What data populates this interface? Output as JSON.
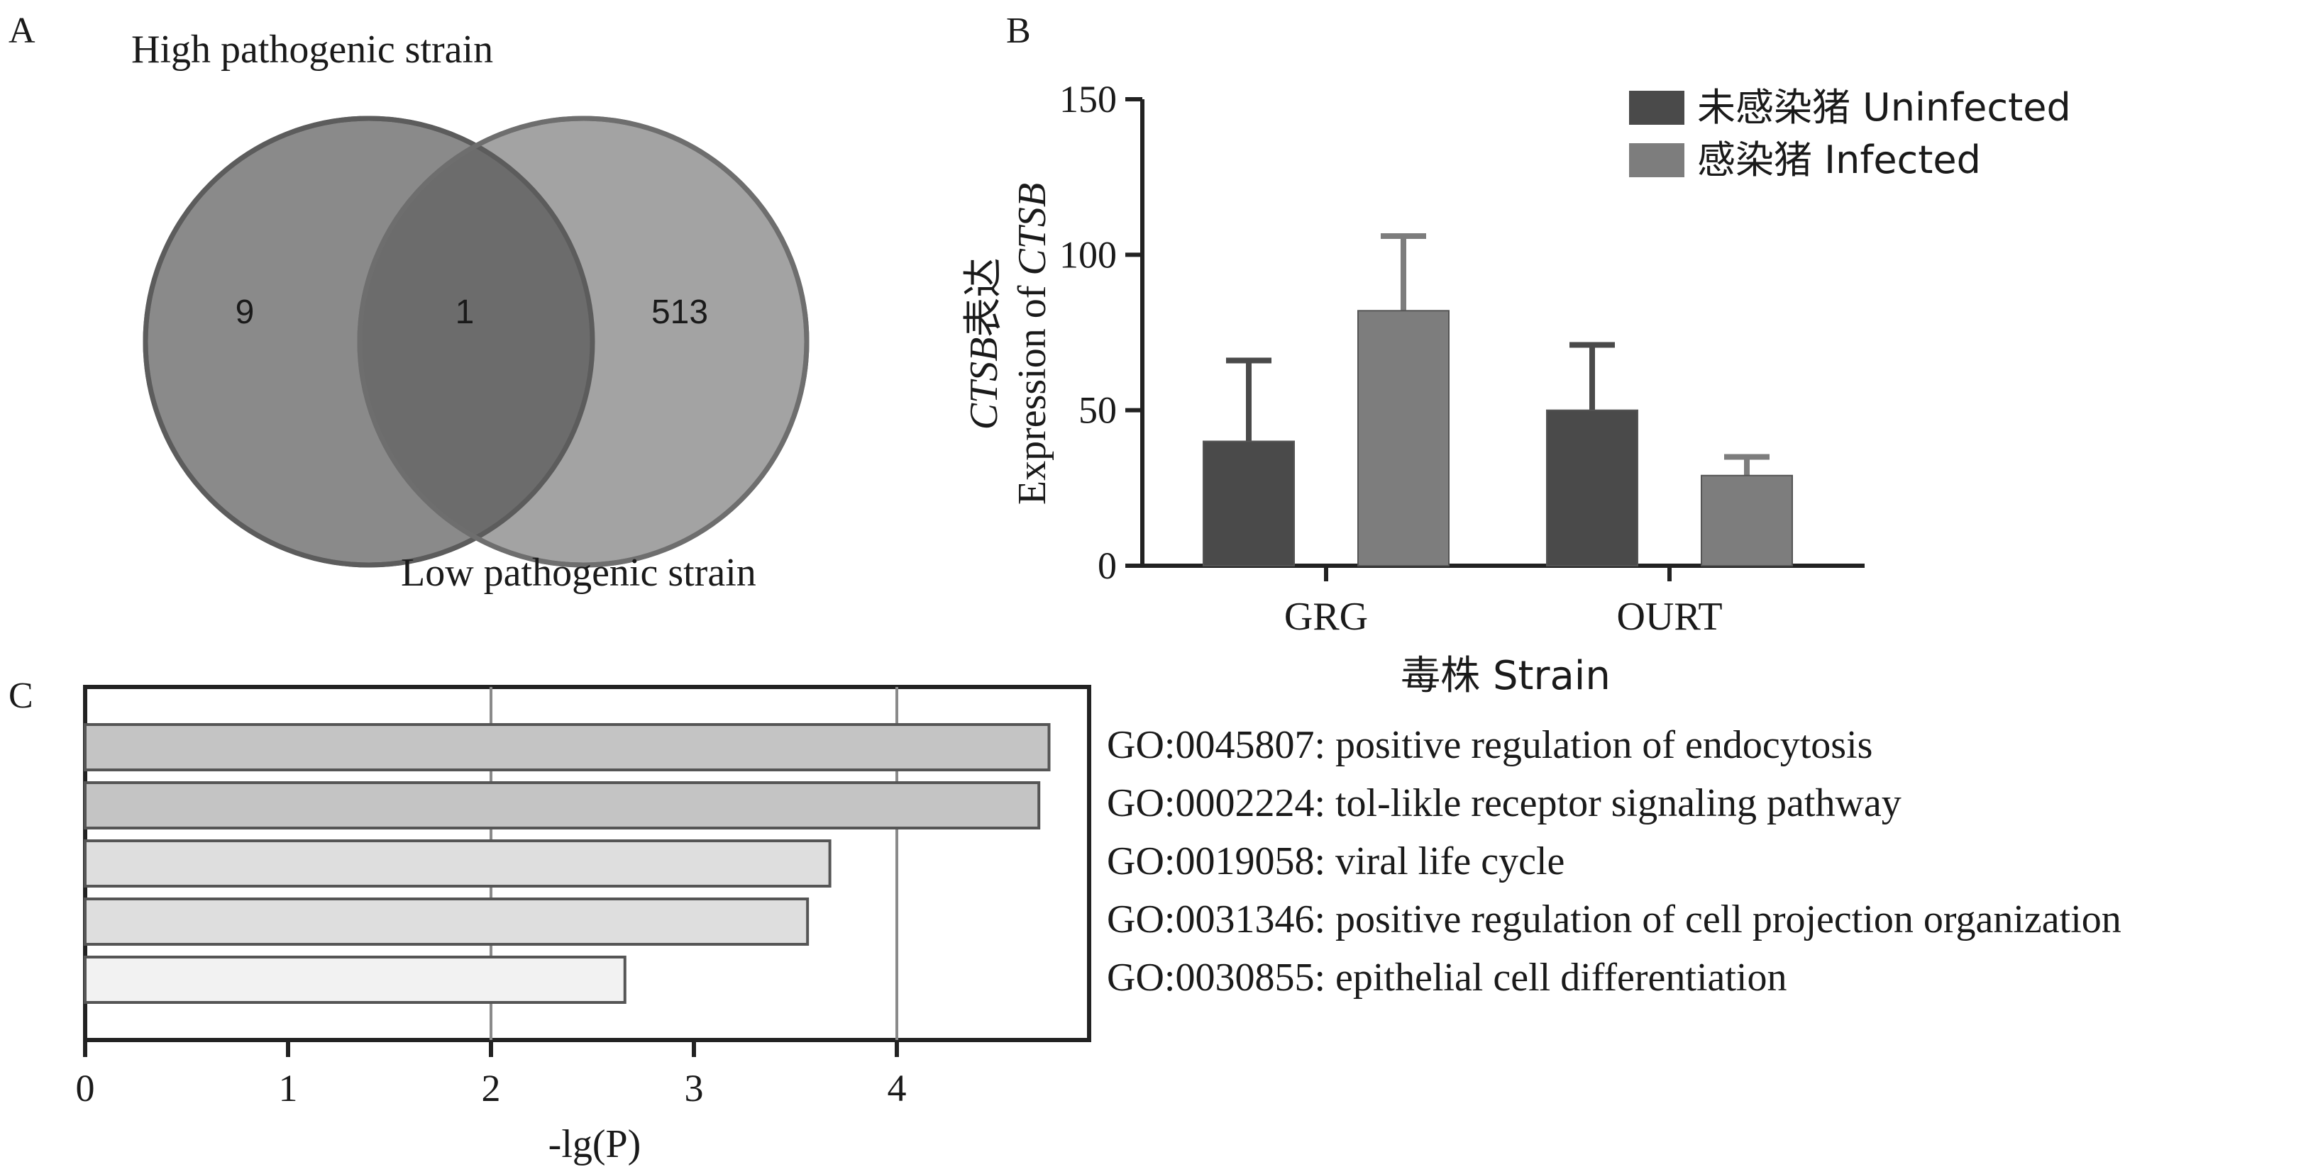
{
  "panels": {
    "a": "A",
    "b": "B",
    "c": "C"
  },
  "colors": {
    "venn_left": "#8a8a8a",
    "venn_right": "#a3a3a3",
    "venn_overlap": "#6c6c6c",
    "uninfected": "#4a4a4a",
    "infected": "#7d7d7d",
    "bar_dark": "#c4c4c4",
    "bar_mid": "#dedede",
    "bar_light": "#f2f2f2"
  },
  "chart_data": [
    {
      "type": "venn",
      "set_labels": [
        "High pathogenic strain",
        "Low pathogenic strain"
      ],
      "counts": {
        "left_only": "9",
        "overlap": "1",
        "right_only": "513"
      }
    },
    {
      "type": "bar",
      "categories": [
        "GRG",
        "OURT"
      ],
      "series": [
        {
          "name": "未感染猪 Uninfected",
          "values": [
            40,
            50
          ],
          "errors": [
            26,
            21
          ]
        },
        {
          "name": "感染猪 Infected",
          "values": [
            82,
            29
          ],
          "errors": [
            24,
            6
          ]
        }
      ],
      "xlabel": "毒株 Strain",
      "ylabel_line1_italic": "CTSB",
      "ylabel_line1_rest": "表达",
      "ylabel_line2_plain": "Expression of ",
      "ylabel_line2_italic": "CTSB",
      "ylim": [
        0,
        150
      ],
      "yticks": [
        0,
        50,
        100,
        150
      ],
      "legend_position": "top-right"
    },
    {
      "type": "bar",
      "orientation": "horizontal",
      "categories": [
        "GO:0045807: positive regulation of endocytosis",
        "GO:0002224: tol-likle receptor signaling pathway",
        "GO:0019058: viral life cycle",
        "GO:0031346: positive regulation of cell projection organization",
        "GO:0030855: epithelial cell differentiation"
      ],
      "values": [
        4.75,
        4.7,
        3.67,
        3.56,
        2.66
      ],
      "xlabel": "-lg(P)",
      "xlim": [
        0,
        5
      ],
      "xticks": [
        0,
        1,
        2,
        3,
        4
      ],
      "grid": true
    }
  ]
}
